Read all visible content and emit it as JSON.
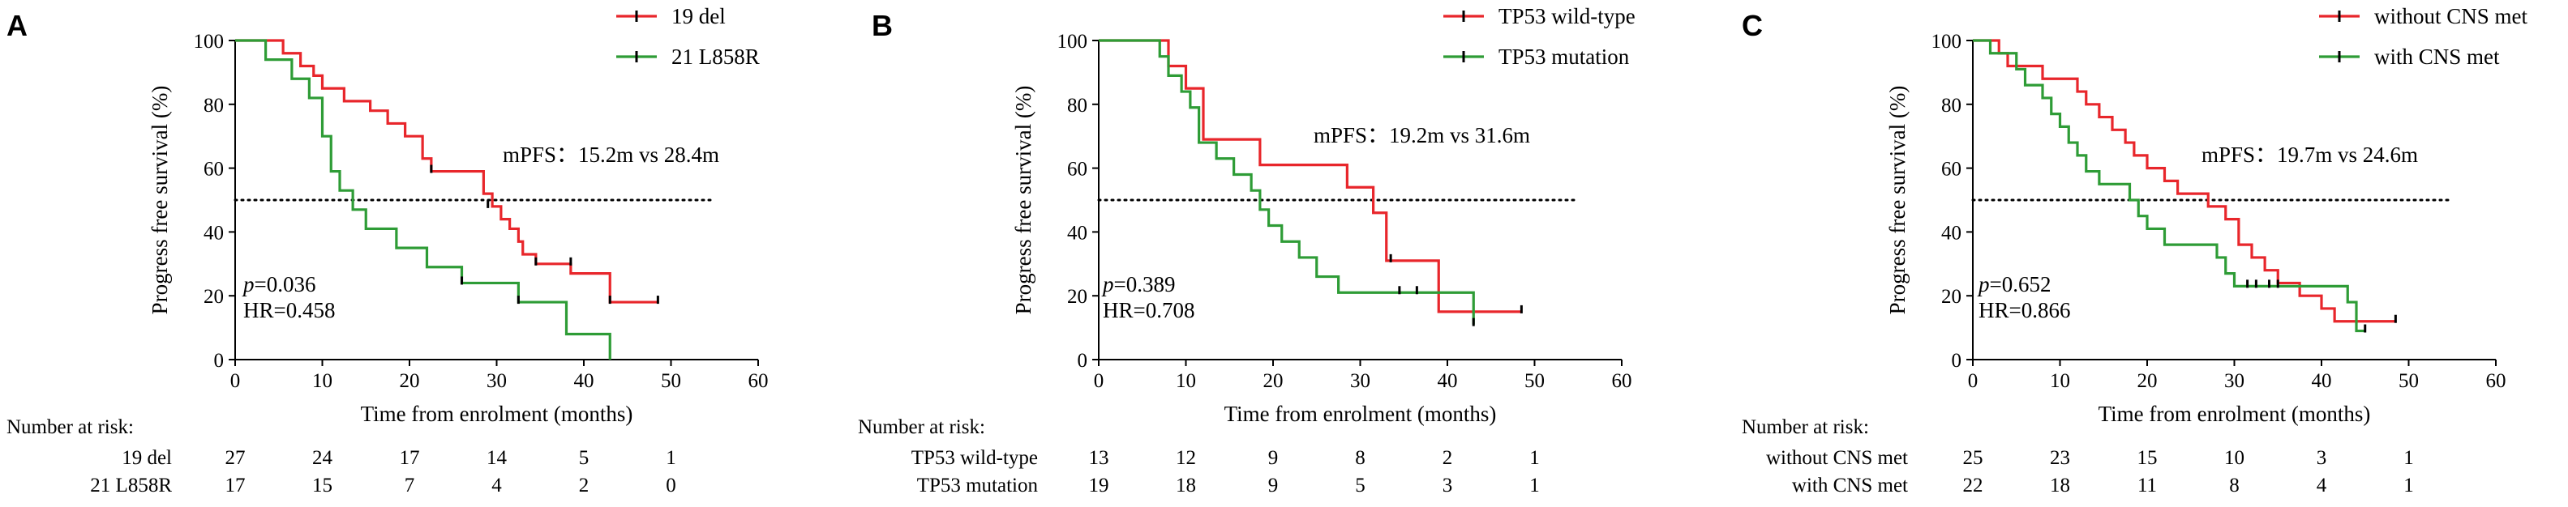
{
  "chart_data": [
    {
      "type": "line",
      "panel": "A",
      "xlabel": "Time from enrolment (months)",
      "ylabel": "Progress free survival (%)",
      "xlim": [
        0,
        60
      ],
      "ylim": [
        0,
        100
      ],
      "xticks": [
        0,
        10,
        20,
        30,
        40,
        50,
        60
      ],
      "yticks": [
        0,
        20,
        40,
        60,
        80,
        100
      ],
      "reference_line": 50,
      "median_text": "mPFS：15.2m vs 28.4m",
      "p_text": "p",
      "p_value": "=0.036",
      "hr_text": "HR=0.458",
      "risk_title": "Number at risk:",
      "risk_times": [
        0,
        10,
        20,
        30,
        40,
        50
      ],
      "series": [
        {
          "name": "19 del",
          "color": "#e8262b",
          "x": [
            0,
            5.5,
            7.5,
            9,
            10,
            12.5,
            15.5,
            17.5,
            19.5,
            21.5,
            22.5,
            28.5,
            29.5,
            30.5,
            31.5,
            32.5,
            33,
            34.5,
            36.5,
            38.5,
            43,
            48.5
          ],
          "y": [
            100,
            96,
            92,
            89,
            85,
            81,
            78,
            74,
            70,
            63,
            59,
            52,
            48,
            44,
            41,
            37,
            33,
            30,
            30,
            27,
            18,
            18
          ],
          "censor_x": [
            22.5,
            29,
            34.5,
            38.5,
            43,
            48.5
          ],
          "censor_y": [
            59,
            48,
            30,
            30,
            18,
            18
          ],
          "at_risk": [
            27,
            24,
            17,
            14,
            5,
            1
          ]
        },
        {
          "name": "21 L858R",
          "color": "#2e9c36",
          "x": [
            0,
            3.5,
            6.5,
            8.5,
            10,
            11,
            12,
            13.5,
            15,
            18.5,
            22,
            26,
            32.5,
            38,
            43
          ],
          "y": [
            100,
            94,
            88,
            82,
            70,
            59,
            53,
            47,
            41,
            35,
            29,
            24,
            18,
            8,
            0
          ],
          "censor_x": [
            26,
            32.5
          ],
          "censor_y": [
            24,
            18
          ],
          "at_risk": [
            17,
            15,
            7,
            4,
            2,
            0
          ]
        }
      ]
    },
    {
      "type": "line",
      "panel": "B",
      "xlabel": "Time from enrolment (months)",
      "ylabel": "Progress free survival (%)",
      "xlim": [
        0,
        60
      ],
      "ylim": [
        0,
        100
      ],
      "xticks": [
        0,
        10,
        20,
        30,
        40,
        50,
        60
      ],
      "yticks": [
        0,
        20,
        40,
        60,
        80,
        100
      ],
      "reference_line": 50,
      "median_text": "mPFS：19.2m vs 31.6m",
      "p_text": "p",
      "p_value": "=0.389",
      "hr_text": "HR=0.708",
      "risk_title": "Number at risk:",
      "risk_times": [
        0,
        10,
        20,
        30,
        40,
        50
      ],
      "series": [
        {
          "name": "TP53 wild-type",
          "color": "#e8262b",
          "x": [
            0,
            8,
            10,
            12,
            15,
            18.5,
            28.5,
            31.5,
            33,
            39,
            48.5
          ],
          "y": [
            100,
            92,
            85,
            69,
            69,
            61,
            54,
            46,
            31,
            15,
            15
          ],
          "censor_x": [
            33.5,
            48.5
          ],
          "censor_y": [
            31,
            15
          ],
          "at_risk": [
            13,
            12,
            9,
            8,
            2,
            1
          ]
        },
        {
          "name": "TP53 mutation",
          "color": "#2e9c36",
          "x": [
            0,
            7,
            8,
            9.5,
            10.5,
            11.5,
            13.5,
            15.5,
            17.5,
            18.5,
            19.5,
            21,
            23,
            25,
            27.5,
            29.5,
            43
          ],
          "y": [
            100,
            95,
            89,
            84,
            79,
            68,
            63,
            58,
            53,
            47,
            42,
            37,
            32,
            26,
            21,
            21,
            11
          ],
          "censor_x": [
            34.5,
            36.5,
            43
          ],
          "censor_y": [
            21,
            21,
            11
          ],
          "at_risk": [
            19,
            18,
            9,
            5,
            3,
            1
          ]
        }
      ]
    },
    {
      "type": "line",
      "panel": "C",
      "xlabel": "Time from enrolment (months)",
      "ylabel": "Progress free survival (%)",
      "xlim": [
        0,
        60
      ],
      "ylim": [
        0,
        100
      ],
      "xticks": [
        0,
        10,
        20,
        30,
        40,
        50,
        60
      ],
      "yticks": [
        0,
        20,
        40,
        60,
        80,
        100
      ],
      "reference_line": 50,
      "median_text": "mPFS：19.7m vs 24.6m",
      "p_text": "p",
      "p_value": "=0.652",
      "hr_text": "HR=0.866",
      "risk_title": "Number at risk:",
      "risk_times": [
        0,
        10,
        20,
        30,
        40,
        50
      ],
      "series": [
        {
          "name": "without CNS met",
          "color": "#e8262b",
          "x": [
            0,
            3,
            4,
            6,
            8,
            10,
            12,
            13,
            14.5,
            16,
            17.5,
            18.5,
            20,
            22,
            23.5,
            25,
            27,
            29,
            30.5,
            32,
            33.5,
            35,
            37.5,
            40,
            41.5,
            48.5
          ],
          "y": [
            100,
            96,
            92,
            92,
            88,
            88,
            84,
            80,
            76,
            72,
            68,
            64,
            60,
            56,
            52,
            52,
            48,
            44,
            36,
            32,
            28,
            24,
            20,
            16,
            12,
            12
          ],
          "censor_x": [
            48.5
          ],
          "censor_y": [
            12
          ],
          "at_risk": [
            25,
            23,
            15,
            10,
            3,
            1
          ]
        },
        {
          "name": "with CNS met",
          "color": "#2e9c36",
          "x": [
            0,
            2,
            5,
            6,
            8,
            9,
            10,
            11,
            12,
            13,
            14.5,
            16,
            18,
            19,
            20,
            22,
            26,
            28,
            29,
            30,
            31,
            31.5,
            32.5,
            35,
            43,
            44,
            45
          ],
          "y": [
            100,
            96,
            91,
            86,
            82,
            77,
            73,
            68,
            64,
            59,
            55,
            55,
            50,
            45,
            41,
            36,
            36,
            32,
            27,
            23,
            23,
            23,
            23,
            23,
            18,
            9,
            9
          ],
          "censor_x": [
            31.5,
            32.5,
            34,
            35,
            45
          ],
          "censor_y": [
            23,
            23,
            23,
            23,
            9
          ],
          "at_risk": [
            22,
            18,
            11,
            8,
            4,
            1
          ]
        }
      ]
    }
  ]
}
